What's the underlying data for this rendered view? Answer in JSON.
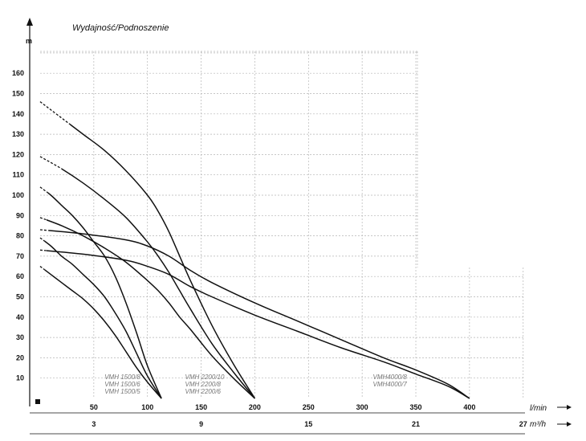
{
  "chart_data": {
    "type": "line",
    "title": "Wydajność/Podnoszenie",
    "ylabel": "m",
    "xlabel": "l/min",
    "x2label": "m³/h",
    "ylim": [
      0,
      170
    ],
    "xlim": [
      0,
      450
    ],
    "y_ticks": [
      10,
      20,
      30,
      40,
      50,
      60,
      70,
      80,
      90,
      100,
      110,
      120,
      130,
      140,
      150,
      160
    ],
    "x_ticks": [
      50,
      100,
      150,
      200,
      250,
      300,
      350,
      400
    ],
    "x2_ticks": [
      {
        "label": "3",
        "lmin": 50
      },
      {
        "label": "9",
        "lmin": 150
      },
      {
        "label": "15",
        "lmin": 250
      },
      {
        "label": "21",
        "lmin": 350
      },
      {
        "label": "27",
        "lmin": 450
      }
    ],
    "model_label_groups": [
      {
        "labels": [
          "VMH 1500/8",
          "VMH 1500/6",
          "VMH 1500/5"
        ],
        "at_x": 60
      },
      {
        "labels": [
          "VMH 2200/10",
          "VMH 2200/8",
          "VMH 2200/6"
        ],
        "at_x": 135
      },
      {
        "labels": [
          "VMH4000/8",
          "VMH4000/7"
        ],
        "at_x": 310
      }
    ],
    "series": [
      {
        "x": [
          0,
          10,
          20,
          30,
          40,
          50,
          60,
          70,
          80,
          90,
          100,
          113
        ],
        "y": [
          104,
          100,
          95,
          90,
          84,
          77,
          70,
          60,
          47,
          32,
          16,
          0
        ],
        "dashed_until": 7
      },
      {
        "x": [
          0,
          10,
          20,
          30,
          40,
          50,
          60,
          70,
          80,
          90,
          100,
          113
        ],
        "y": [
          79,
          75,
          70,
          66,
          61,
          56,
          50,
          42,
          33,
          22,
          11,
          0
        ],
        "dashed_until": 4
      },
      {
        "x": [
          0,
          10,
          20,
          30,
          40,
          50,
          60,
          70,
          80,
          90,
          100,
          113
        ],
        "y": [
          65,
          61,
          57,
          53,
          49,
          44,
          38,
          31,
          23,
          15,
          8,
          0
        ],
        "dashed_until": 4
      },
      {
        "x": [
          0,
          20,
          40,
          60,
          80,
          100,
          110,
          120,
          130,
          140,
          160,
          180,
          200
        ],
        "y": [
          146,
          138,
          130,
          122,
          112,
          100,
          92,
          82,
          70,
          58,
          36,
          17,
          0
        ],
        "dashed_until": 28
      },
      {
        "x": [
          0,
          20,
          40,
          60,
          80,
          100,
          110,
          120,
          130,
          140,
          160,
          180,
          200
        ],
        "y": [
          119,
          113,
          106,
          98,
          89,
          77,
          70,
          62,
          53,
          44,
          27,
          13,
          0
        ],
        "dashed_until": 20
      },
      {
        "x": [
          0,
          20,
          40,
          60,
          80,
          100,
          110,
          120,
          130,
          140,
          160,
          180,
          200
        ],
        "y": [
          89,
          85,
          80,
          74,
          67,
          58,
          53,
          47,
          40,
          34,
          21,
          10,
          0
        ],
        "dashed_until": 6
      },
      {
        "x": [
          0,
          40,
          80,
          100,
          120,
          140,
          160,
          200,
          240,
          280,
          320,
          350,
          380,
          400
        ],
        "y": [
          83,
          81,
          78,
          75,
          70,
          63,
          57,
          47,
          38,
          29,
          20,
          14,
          7,
          0
        ],
        "dashed_until": 8
      },
      {
        "x": [
          0,
          40,
          80,
          100,
          120,
          140,
          160,
          200,
          240,
          280,
          320,
          350,
          380,
          400
        ],
        "y": [
          73,
          71,
          68,
          65,
          61,
          55,
          50,
          41,
          33,
          25,
          18,
          12,
          6,
          0
        ],
        "dashed_until": 6
      }
    ]
  }
}
